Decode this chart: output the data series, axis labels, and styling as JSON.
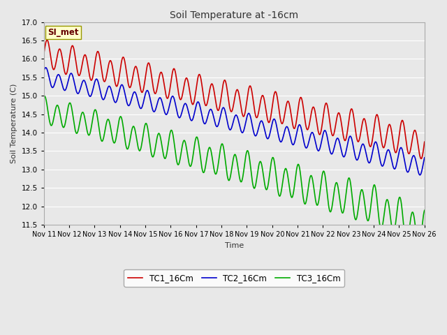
{
  "title": "Soil Temperature at -16cm",
  "xlabel": "Time",
  "ylabel": "Soil Temperature (C)",
  "ylim": [
    11.5,
    17.0
  ],
  "yticks": [
    11.5,
    12.0,
    12.5,
    13.0,
    13.5,
    14.0,
    14.5,
    15.0,
    15.5,
    16.0,
    16.5,
    17.0
  ],
  "xtick_labels": [
    "Nov 11",
    "Nov 12",
    "Nov 13",
    "Nov 14",
    "Nov 15",
    "Nov 16",
    "Nov 17",
    "Nov 18",
    "Nov 19",
    "Nov 20",
    "Nov 21",
    "Nov 22",
    "Nov 23",
    "Nov 24",
    "Nov 25",
    "Nov 26"
  ],
  "legend_labels": [
    "TC1_16Cm",
    "TC2_16Cm",
    "TC3_16Cm"
  ],
  "line_colors": [
    "#cc0000",
    "#0000cc",
    "#00aa00"
  ],
  "line_width": 1.2,
  "bg_color": "#e8e8e8",
  "plot_bg_color": "#e8e8e8",
  "grid_color": "#ffffff",
  "annotation_text": "SI_met",
  "annotation_bg": "#ffffcc",
  "annotation_border": "#999900"
}
